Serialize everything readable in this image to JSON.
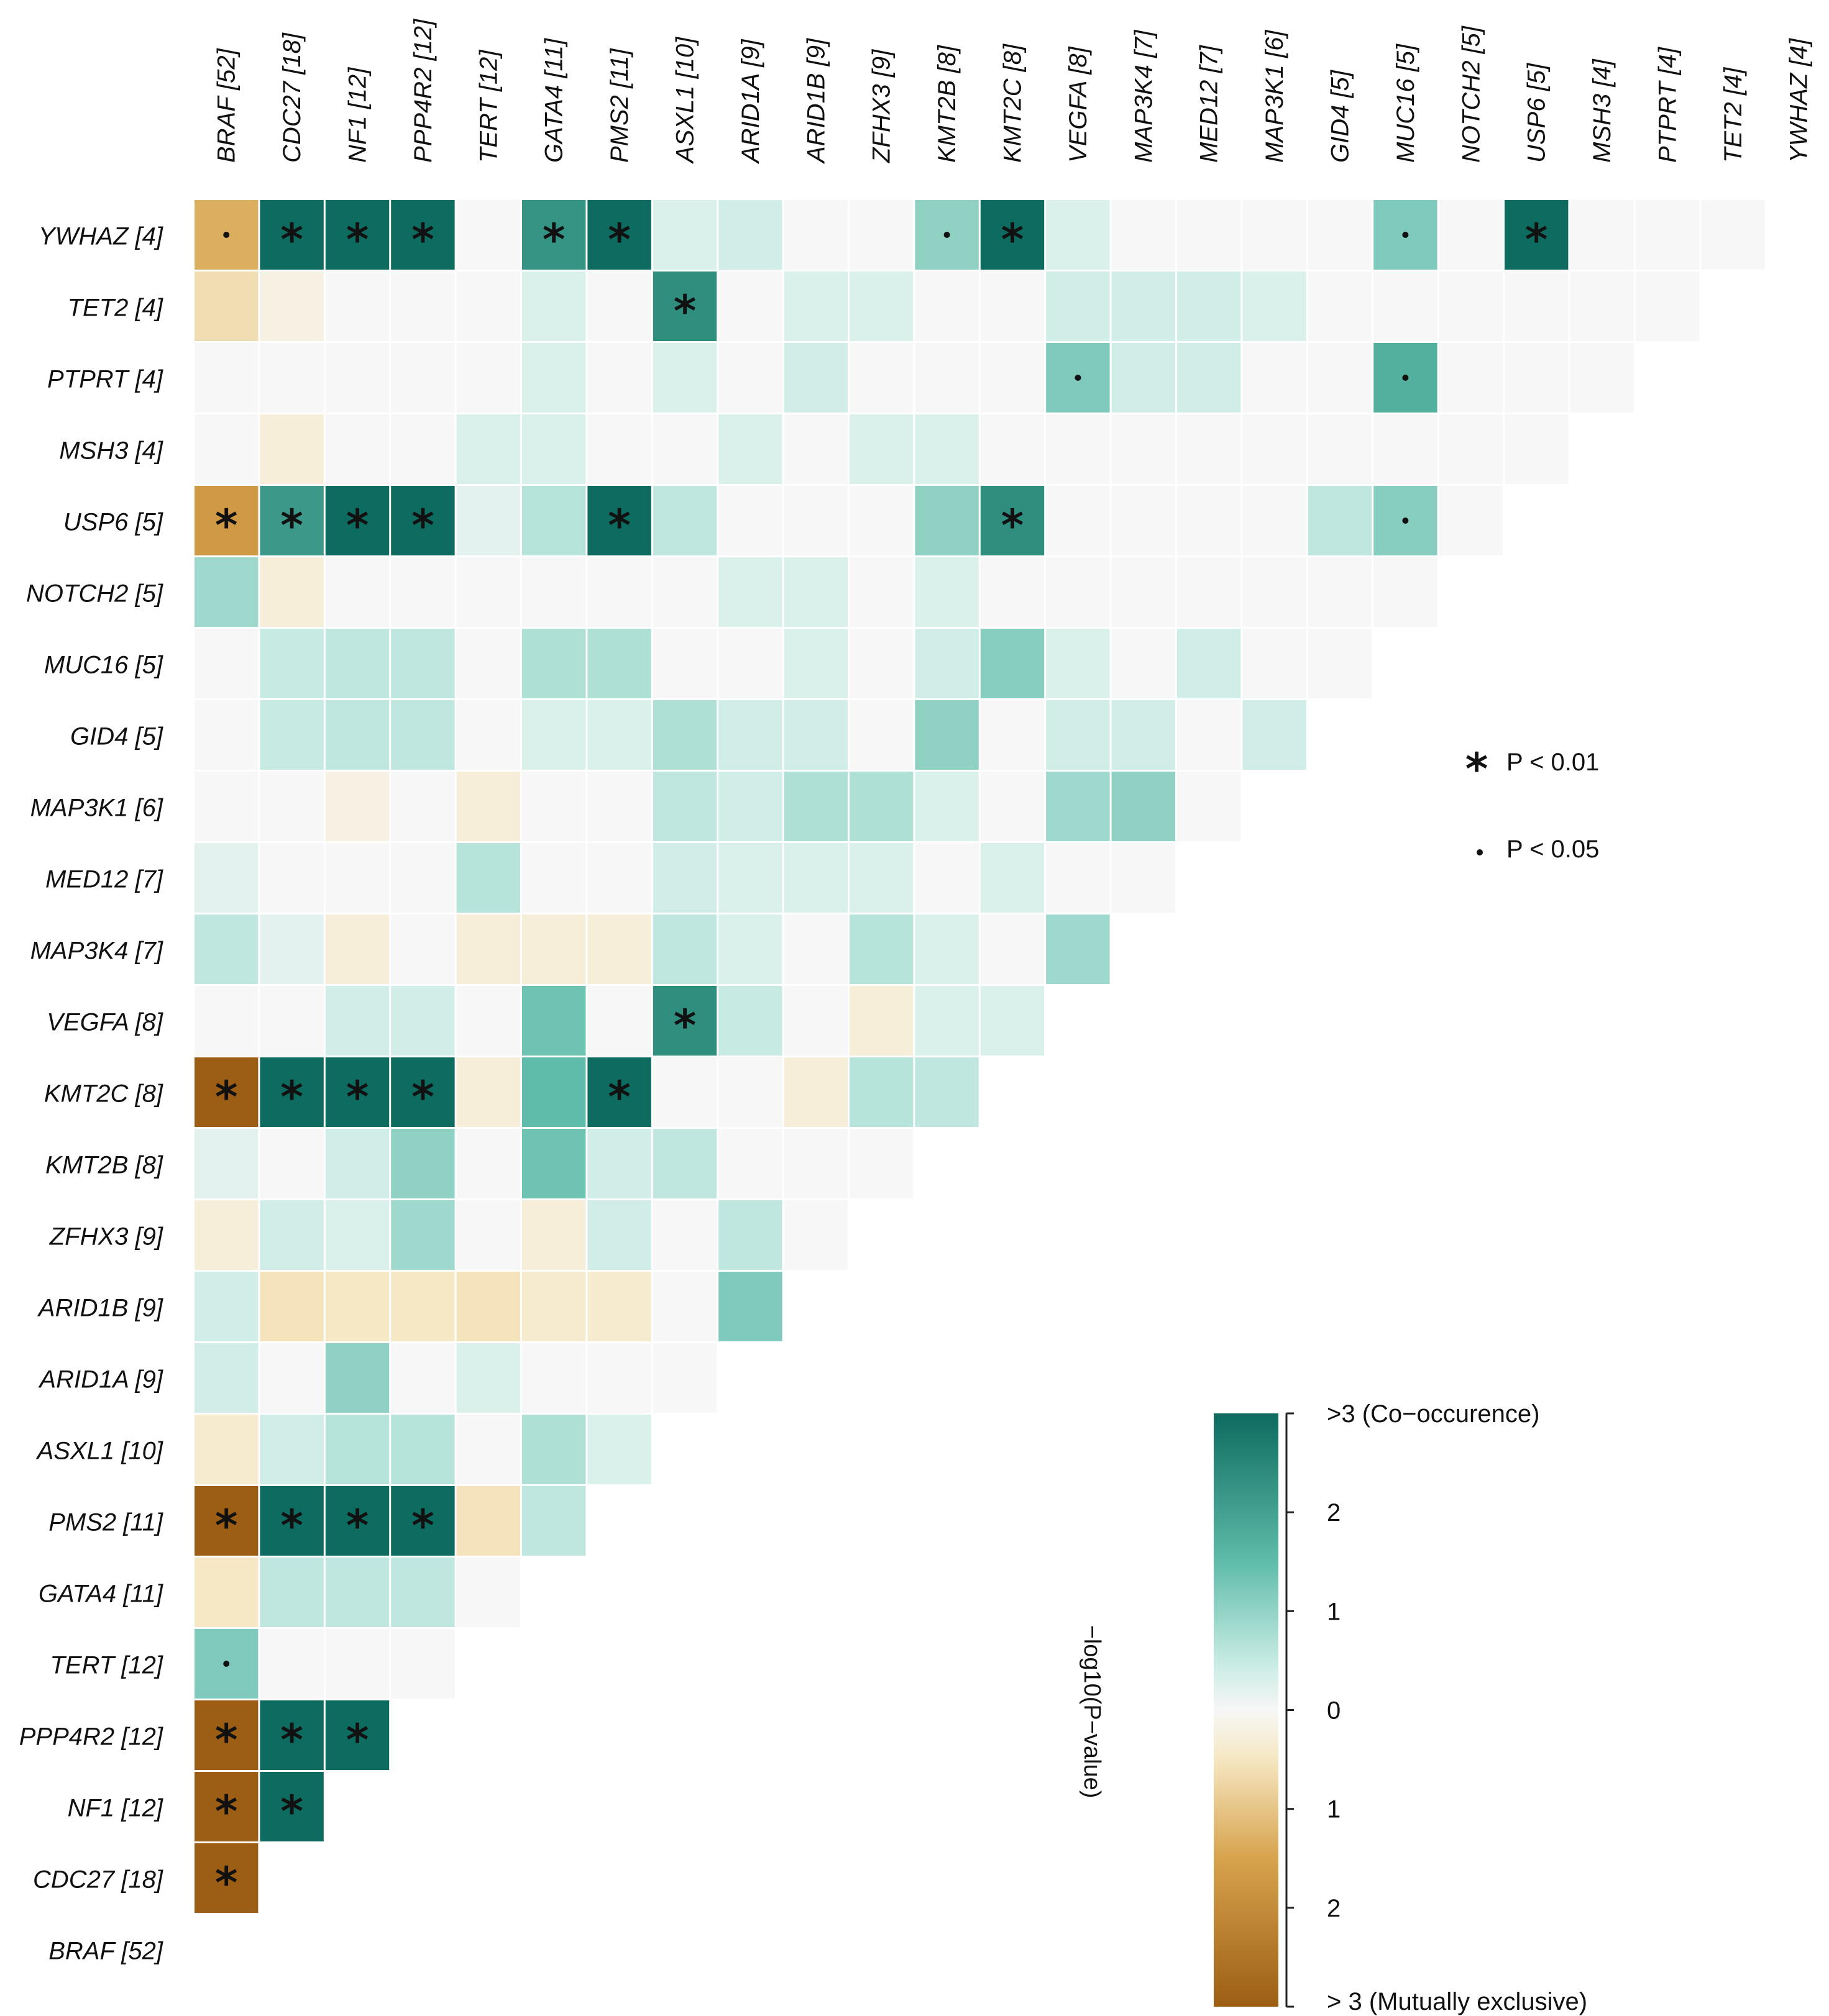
{
  "chart_data": {
    "type": "heatmap",
    "title": "",
    "genes": [
      "BRAF [52]",
      "CDC27 [18]",
      "NF1 [12]",
      "PPP4R2 [12]",
      "TERT [12]",
      "GATA4 [11]",
      "PMS2 [11]",
      "ASXL1 [10]",
      "ARID1A [9]",
      "ARID1B [9]",
      "ZFHX3 [9]",
      "KMT2B [8]",
      "KMT2C [8]",
      "VEGFA [8]",
      "MAP3K4 [7]",
      "MED12 [7]",
      "MAP3K1 [6]",
      "GID4 [5]",
      "MUC16 [5]",
      "NOTCH2 [5]",
      "USP6 [5]",
      "MSH3 [4]",
      "PTPRT [4]",
      "TET2 [4]",
      "YWHAZ [4]"
    ],
    "column_labels": [
      "BRAF [52]",
      "CDC27 [18]",
      "NF1 [12]",
      "PPP4R2 [12]",
      "TERT [12]",
      "GATA4 [11]",
      "PMS2 [11]",
      "ASXL1 [10]",
      "ARID1A [9]",
      "ARID1B [9]",
      "ZFHX3 [9]",
      "KMT2B [8]",
      "KMT2C [8]",
      "VEGFA [8]",
      "MAP3K4 [7]",
      "MED12 [7]",
      "MAP3K1 [6]",
      "GID4 [5]",
      "MUC16 [5]",
      "NOTCH2 [5]",
      "USP6 [5]",
      "MSH3 [4]",
      "PTPRT [4]",
      "TET2 [4]",
      "YWHAZ [4]"
    ],
    "row_labels": [
      "YWHAZ [4]",
      "TET2 [4]",
      "PTPRT [4]",
      "MSH3 [4]",
      "USP6 [5]",
      "NOTCH2 [5]",
      "MUC16 [5]",
      "GID4 [5]",
      "MAP3K1 [6]",
      "MED12 [7]",
      "MAP3K4 [7]",
      "VEGFA [8]",
      "KMT2C [8]",
      "KMT2B [8]",
      "ZFHX3 [9]",
      "ARID1B [9]",
      "ARID1A [9]",
      "ASXL1 [10]",
      "PMS2 [11]",
      "GATA4 [11]",
      "TERT [12]",
      "PPP4R2 [12]",
      "NF1 [12]",
      "CDC27 [18]",
      "BRAF [52]"
    ],
    "value_note": "signed -log10(P-value): positive = co-occurrence, negative = mutual exclusivity",
    "values": [
      [
        -1.6,
        3.2,
        3.2,
        3.2,
        0,
        2.5,
        3.2,
        0.3,
        0.4,
        0,
        0,
        1.2,
        3.2,
        0.3,
        0,
        0,
        0,
        0,
        1.4,
        0,
        3.2,
        0,
        0,
        0
      ],
      [
        -0.7,
        -0.2,
        0,
        0,
        0,
        0.3,
        0,
        2.6,
        0,
        0.3,
        0.3,
        0,
        0,
        0.4,
        0.4,
        0.4,
        0.3,
        0,
        0,
        0,
        0,
        0,
        0
      ],
      [
        0,
        0,
        0,
        0,
        0,
        0.3,
        0,
        0.3,
        0,
        0.4,
        0,
        0,
        0,
        1.4,
        0.4,
        0.4,
        0,
        0,
        2.0,
        0,
        0,
        0
      ],
      [
        0,
        -0.3,
        0,
        0,
        0.3,
        0.3,
        0,
        0,
        0.3,
        0,
        0.3,
        0.3,
        0,
        0,
        0,
        0,
        0,
        0,
        0,
        0,
        0
      ],
      [
        -2.0,
        2.4,
        3.2,
        3.2,
        0.2,
        0.7,
        3.2,
        0.6,
        0,
        0,
        0,
        1.2,
        2.6,
        0,
        0,
        0,
        0,
        0.6,
        1.3,
        0
      ],
      [
        1.0,
        -0.3,
        0,
        0,
        0,
        0,
        0,
        0,
        0.3,
        0.3,
        0,
        0.3,
        0,
        0,
        0,
        0,
        0,
        0,
        0
      ],
      [
        0,
        0.5,
        0.6,
        0.6,
        0,
        0.8,
        0.8,
        0,
        0,
        0.3,
        0,
        0.4,
        1.3,
        0.3,
        0,
        0.4,
        0,
        0
      ],
      [
        0,
        0.5,
        0.6,
        0.6,
        0,
        0.3,
        0.3,
        0.8,
        0.4,
        0.4,
        0,
        1.2,
        0,
        0.4,
        0.4,
        0,
        0.4
      ],
      [
        0,
        0,
        -0.2,
        0,
        -0.3,
        0,
        0,
        0.6,
        0.4,
        0.8,
        0.8,
        0.3,
        0,
        1.0,
        1.2,
        0
      ],
      [
        0.2,
        0,
        0,
        0,
        0.7,
        0,
        0,
        0.4,
        0.3,
        0.3,
        0.3,
        0,
        0.3,
        0,
        0
      ],
      [
        0.6,
        0.2,
        -0.3,
        0,
        -0.3,
        -0.3,
        -0.3,
        0.6,
        0.3,
        0,
        0.7,
        0.3,
        0,
        1.0
      ],
      [
        0,
        0,
        0.4,
        0.4,
        0,
        1.6,
        0,
        2.6,
        0.5,
        0,
        -0.3,
        0.3,
        0.3
      ],
      [
        -3.2,
        3.2,
        3.2,
        3.2,
        -0.3,
        1.8,
        3.2,
        0,
        0,
        -0.3,
        0.7,
        0.6
      ],
      [
        0.2,
        0,
        0.4,
        1.2,
        0,
        1.6,
        0.4,
        0.6,
        0,
        0,
        0
      ],
      [
        -0.3,
        0.4,
        0.3,
        1.0,
        0,
        -0.3,
        0.4,
        0,
        0.6,
        0
      ],
      [
        0.4,
        -0.6,
        -0.5,
        -0.5,
        -0.6,
        -0.4,
        -0.4,
        0,
        1.4
      ],
      [
        0.4,
        0,
        1.2,
        0,
        0.3,
        0,
        0,
        0
      ],
      [
        -0.4,
        0.4,
        0.7,
        0.7,
        0,
        0.8,
        0.3
      ],
      [
        -3.2,
        3.2,
        3.2,
        3.2,
        -0.6,
        0.6
      ],
      [
        -0.5,
        0.6,
        0.6,
        0.6,
        0
      ],
      [
        1.4,
        0,
        0,
        0
      ],
      [
        -3.2,
        3.2,
        3.2
      ],
      [
        -3.2,
        3.2
      ],
      [
        -3.2
      ]
    ],
    "significance_marks": [
      {
        "row": "YWHAZ [4]",
        "col": "BRAF [52]",
        "mark": "dot"
      },
      {
        "row": "YWHAZ [4]",
        "col": "CDC27 [18]",
        "mark": "star"
      },
      {
        "row": "YWHAZ [4]",
        "col": "NF1 [12]",
        "mark": "star"
      },
      {
        "row": "YWHAZ [4]",
        "col": "PPP4R2 [12]",
        "mark": "star"
      },
      {
        "row": "YWHAZ [4]",
        "col": "GATA4 [11]",
        "mark": "star"
      },
      {
        "row": "YWHAZ [4]",
        "col": "PMS2 [11]",
        "mark": "star"
      },
      {
        "row": "YWHAZ [4]",
        "col": "KMT2B [8]",
        "mark": "dot"
      },
      {
        "row": "YWHAZ [4]",
        "col": "KMT2C [8]",
        "mark": "star"
      },
      {
        "row": "YWHAZ [4]",
        "col": "MUC16 [5]",
        "mark": "dot"
      },
      {
        "row": "YWHAZ [4]",
        "col": "USP6 [5]",
        "mark": "star"
      },
      {
        "row": "TET2 [4]",
        "col": "ASXL1 [10]",
        "mark": "star"
      },
      {
        "row": "PTPRT [4]",
        "col": "VEGFA [8]",
        "mark": "dot"
      },
      {
        "row": "PTPRT [4]",
        "col": "MUC16 [5]",
        "mark": "dot"
      },
      {
        "row": "USP6 [5]",
        "col": "BRAF [52]",
        "mark": "star"
      },
      {
        "row": "USP6 [5]",
        "col": "CDC27 [18]",
        "mark": "star"
      },
      {
        "row": "USP6 [5]",
        "col": "NF1 [12]",
        "mark": "star"
      },
      {
        "row": "USP6 [5]",
        "col": "PPP4R2 [12]",
        "mark": "star"
      },
      {
        "row": "USP6 [5]",
        "col": "PMS2 [11]",
        "mark": "star"
      },
      {
        "row": "USP6 [5]",
        "col": "KMT2C [8]",
        "mark": "star"
      },
      {
        "row": "USP6 [5]",
        "col": "MUC16 [5]",
        "mark": "dot"
      },
      {
        "row": "VEGFA [8]",
        "col": "ASXL1 [10]",
        "mark": "star"
      },
      {
        "row": "KMT2C [8]",
        "col": "BRAF [52]",
        "mark": "star"
      },
      {
        "row": "KMT2C [8]",
        "col": "CDC27 [18]",
        "mark": "star"
      },
      {
        "row": "KMT2C [8]",
        "col": "NF1 [12]",
        "mark": "star"
      },
      {
        "row": "KMT2C [8]",
        "col": "PPP4R2 [12]",
        "mark": "star"
      },
      {
        "row": "KMT2C [8]",
        "col": "PMS2 [11]",
        "mark": "star"
      },
      {
        "row": "PMS2 [11]",
        "col": "BRAF [52]",
        "mark": "star"
      },
      {
        "row": "PMS2 [11]",
        "col": "CDC27 [18]",
        "mark": "star"
      },
      {
        "row": "PMS2 [11]",
        "col": "NF1 [12]",
        "mark": "star"
      },
      {
        "row": "PMS2 [11]",
        "col": "PPP4R2 [12]",
        "mark": "star"
      },
      {
        "row": "TERT [12]",
        "col": "BRAF [52]",
        "mark": "dot"
      },
      {
        "row": "PPP4R2 [12]",
        "col": "BRAF [52]",
        "mark": "star"
      },
      {
        "row": "PPP4R2 [12]",
        "col": "CDC27 [18]",
        "mark": "star"
      },
      {
        "row": "PPP4R2 [12]",
        "col": "NF1 [12]",
        "mark": "star"
      },
      {
        "row": "NF1 [12]",
        "col": "BRAF [52]",
        "mark": "star"
      },
      {
        "row": "NF1 [12]",
        "col": "CDC27 [18]",
        "mark": "star"
      },
      {
        "row": "CDC27 [18]",
        "col": "BRAF [52]",
        "mark": "star"
      }
    ],
    "legend": {
      "star_label": "P < 0.01",
      "dot_label": "P < 0.05"
    },
    "colorbar": {
      "title": "−log10(P−value)",
      "range": [
        -3,
        3
      ],
      "tick_labels": [
        "> 3 (Mutually exclusive)",
        "2",
        "1",
        "0",
        "1",
        "2",
        ">3 (Co−occurence)"
      ],
      "colors": {
        "mutually_exclusive": "#9c5e14",
        "mid_exclusive": "#d7a34d",
        "light_exclusive": "#f6e8c4",
        "neutral": "#f7f7f7",
        "light_cooccurrence": "#c7ebe3",
        "mid_cooccurrence": "#5fbcaa",
        "cooccurrence": "#0d6b5f"
      }
    }
  }
}
